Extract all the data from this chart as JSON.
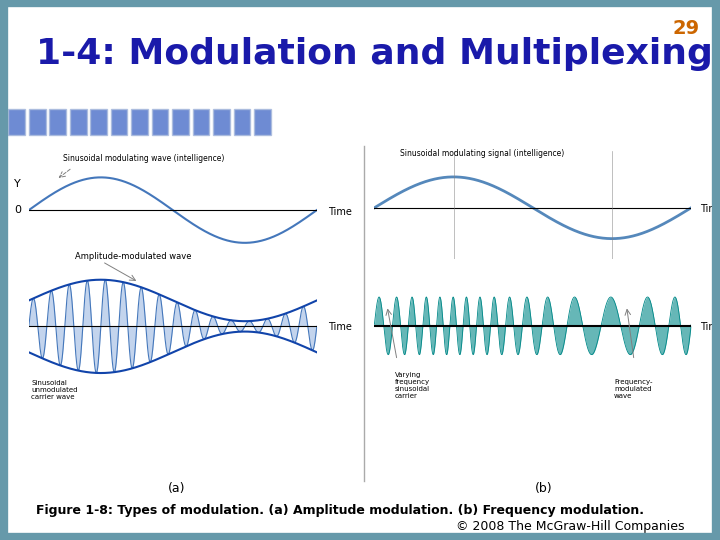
{
  "title": "1-4: Modulation and Multiplexing",
  "title_color": "#1a1aaa",
  "page_number": "29",
  "page_num_color": "#cc6600",
  "background_color": "#ffffff",
  "header_stripe_color": "#b8c870",
  "blue_squares_color": "#5577cc",
  "figure_caption": "Figure 1-8: Types of modulation. (a) Amplitude modulation. (b) Frequency modulation.",
  "copyright": "© 2008 The McGraw-Hill Companies",
  "modulating_color": "#4477bb",
  "carrier_color": "#4477bb",
  "am_envelope_color": "#1144aa",
  "am_fill_color": "#88aadd",
  "fm_mod_color": "#5588bb",
  "fm_carrier_color": "#008888",
  "border_color": "#6699aa",
  "label_a": "(a)",
  "label_b": "(b)"
}
